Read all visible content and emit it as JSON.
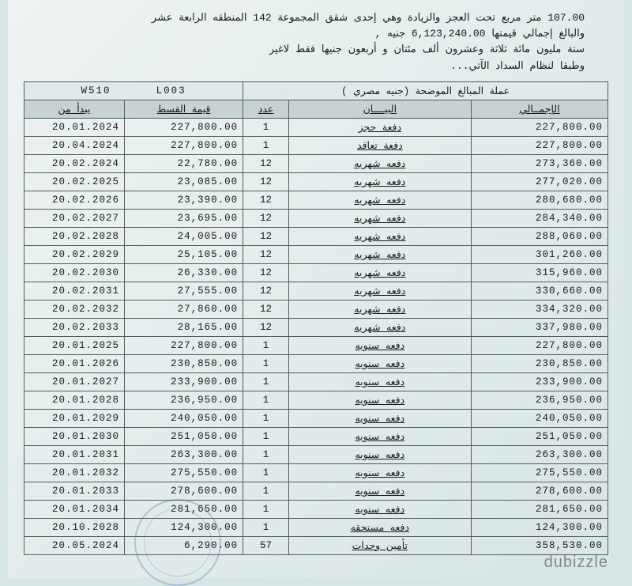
{
  "header": {
    "line1": "107.00  متر مربع تحت العجز والزيادة وهي إحدى شقق المجموعة  142  المنطقه الرابعة عشر",
    "line2": "والبالغ إجمالي قيمتها   6,123,240.00  جنيه ,",
    "line3": "ستة مليون مائة ثلاثة وعشرون ألف مئتان و أربعون   جنيها فقط لاغير",
    "line4": "وطبقا لنظام السداد الآتي..."
  },
  "table": {
    "codes": {
      "w": "W510",
      "l": "L003"
    },
    "currency_label": "عملة المبالغ الموضحة (جنيه مصري )",
    "columns": {
      "start": "يبدأ من",
      "installment": "قيمة القسط",
      "count": "عدد",
      "desc": "البيــــان",
      "total": "الإجمــالي"
    },
    "rows": [
      {
        "date": "20.01.2024",
        "inst": "227,800.00",
        "cnt": "1",
        "desc": "دفعة حجز",
        "total": "227,800.00"
      },
      {
        "date": "20.04.2024",
        "inst": "227,800.00",
        "cnt": "1",
        "desc": "دفعة تعاقد",
        "total": "227,800.00"
      },
      {
        "date": "20.02.2024",
        "inst": "22,780.00",
        "cnt": "12",
        "desc": "دفعه شهريه",
        "total": "273,360.00"
      },
      {
        "date": "20.02.2025",
        "inst": "23,085.00",
        "cnt": "12",
        "desc": "دفعه شهريه",
        "total": "277,020.00"
      },
      {
        "date": "20.02.2026",
        "inst": "23,390.00",
        "cnt": "12",
        "desc": "دفعه شهريه",
        "total": "280,680.00"
      },
      {
        "date": "20.02.2027",
        "inst": "23,695.00",
        "cnt": "12",
        "desc": "دفعه شهريه",
        "total": "284,340.00"
      },
      {
        "date": "20.02.2028",
        "inst": "24,005.00",
        "cnt": "12",
        "desc": "دفعه شهريه",
        "total": "288,060.00"
      },
      {
        "date": "20.02.2029",
        "inst": "25,105.00",
        "cnt": "12",
        "desc": "دفعه شهريه",
        "total": "301,260.00"
      },
      {
        "date": "20.02.2030",
        "inst": "26,330.00",
        "cnt": "12",
        "desc": "دفعه شهريه",
        "total": "315,960.00"
      },
      {
        "date": "20.02.2031",
        "inst": "27,555.00",
        "cnt": "12",
        "desc": "دفعه شهريه",
        "total": "330,660.00"
      },
      {
        "date": "20.02.2032",
        "inst": "27,860.00",
        "cnt": "12",
        "desc": "دفعه شهريه",
        "total": "334,320.00"
      },
      {
        "date": "20.02.2033",
        "inst": "28,165.00",
        "cnt": "12",
        "desc": "دفعه شهريه",
        "total": "337,980.00"
      },
      {
        "date": "20.01.2025",
        "inst": "227,800.00",
        "cnt": "1",
        "desc": "دفعه سنويه",
        "total": "227,800.00"
      },
      {
        "date": "20.01.2026",
        "inst": "230,850.00",
        "cnt": "1",
        "desc": "دفعه سنويه",
        "total": "230,850.00"
      },
      {
        "date": "20.01.2027",
        "inst": "233,900.00",
        "cnt": "1",
        "desc": "دفعه سنويه",
        "total": "233,900.00"
      },
      {
        "date": "20.01.2028",
        "inst": "236,950.00",
        "cnt": "1",
        "desc": "دفعه سنويه",
        "total": "236,950.00"
      },
      {
        "date": "20.01.2029",
        "inst": "240,050.00",
        "cnt": "1",
        "desc": "دفعه سنويه",
        "total": "240,050.00"
      },
      {
        "date": "20.01.2030",
        "inst": "251,050.00",
        "cnt": "1",
        "desc": "دفعه سنويه",
        "total": "251,050.00"
      },
      {
        "date": "20.01.2031",
        "inst": "263,300.00",
        "cnt": "1",
        "desc": "دفعه سنويه",
        "total": "263,300.00"
      },
      {
        "date": "20.01.2032",
        "inst": "275,550.00",
        "cnt": "1",
        "desc": "دفعه سنويه",
        "total": "275,550.00"
      },
      {
        "date": "20.01.2033",
        "inst": "278,600.00",
        "cnt": "1",
        "desc": "دفعه سنويه",
        "total": "278,600.00"
      },
      {
        "date": "20.01.2034",
        "inst": "281,650.00",
        "cnt": "1",
        "desc": "دفعه سنويه",
        "total": "281,650.00"
      },
      {
        "date": "20.10.2028",
        "inst": "124,300.00",
        "cnt": "1",
        "desc": "دفعه مستحقه",
        "total": "124,300.00"
      },
      {
        "date": "20.05.2024",
        "inst": "6,290.00",
        "cnt": "57",
        "desc": "تأمين وحدات",
        "total": "358,530.00"
      }
    ]
  },
  "watermark": "dubizzle"
}
